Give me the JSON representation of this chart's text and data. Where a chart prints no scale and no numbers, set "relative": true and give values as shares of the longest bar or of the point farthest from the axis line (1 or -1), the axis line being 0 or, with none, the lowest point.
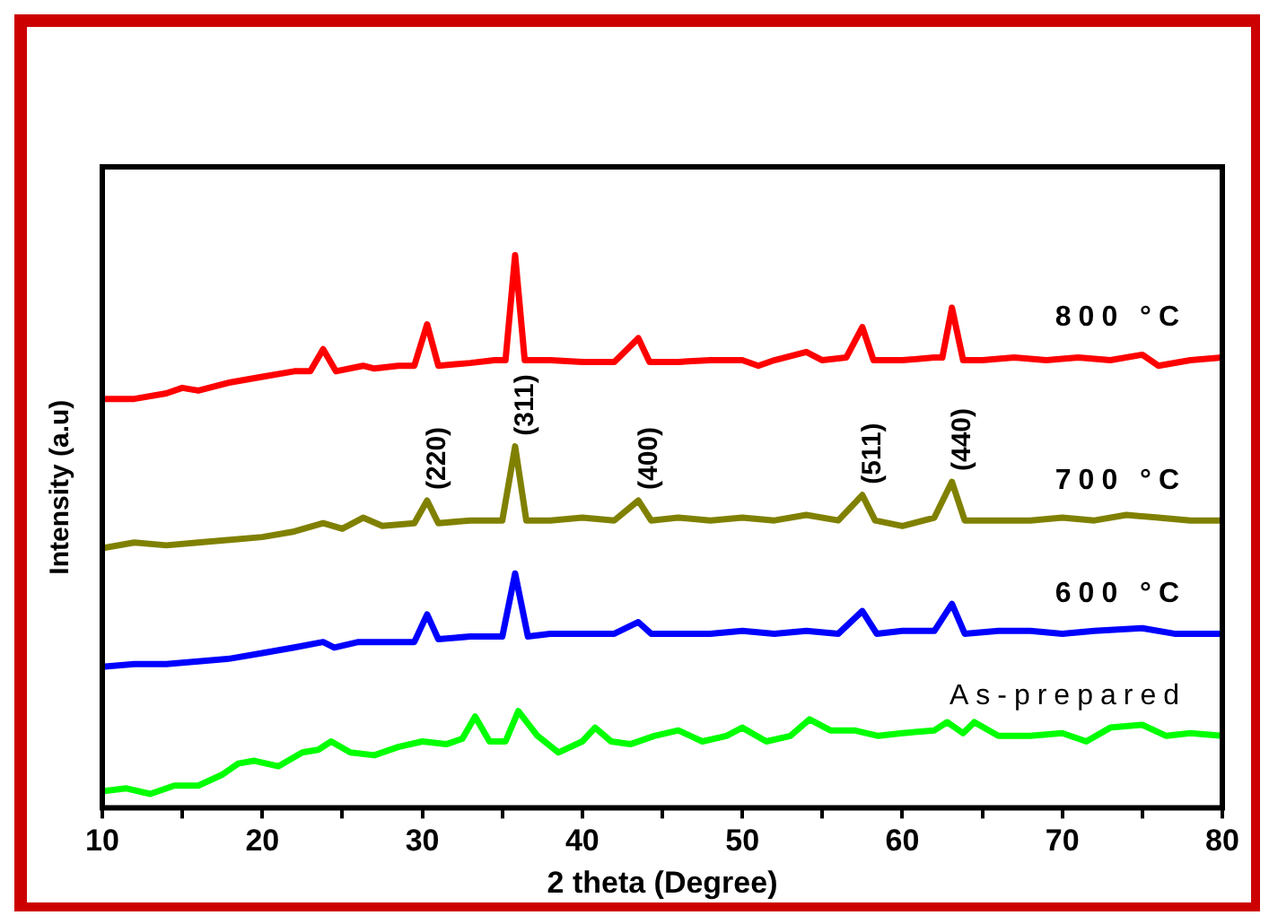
{
  "chart_data": {
    "type": "line",
    "relative": true,
    "xlabel": "2 theta (Degree)",
    "ylabel": "Intensity (a.u)",
    "xlim": [
      10,
      80
    ],
    "xticks": [
      10,
      {
        "value": 15,
        "label": null
      },
      20,
      {
        "value": 25,
        "label": null
      },
      30,
      {
        "value": 35,
        "label": null
      },
      40,
      {
        "value": 45,
        "label": null
      },
      50,
      {
        "value": 55,
        "label": null
      },
      60,
      {
        "value": 65,
        "label": null
      },
      70,
      {
        "value": 75,
        "label": null
      },
      80
    ],
    "legend": false,
    "grid": false,
    "marker": "none",
    "line_style": "solid",
    "series": [
      {
        "name": "800 °C",
        "color": "#ff0000",
        "x": [
          10,
          12,
          14,
          15,
          16,
          18,
          20,
          22,
          23,
          23.8,
          24.6,
          26.3,
          27,
          28.5,
          29.5,
          30.3,
          31,
          33,
          34.5,
          35.2,
          35.8,
          36.4,
          38,
          40,
          42,
          43.5,
          44.2,
          46,
          48,
          50,
          51,
          52,
          54,
          55,
          56.5,
          57.5,
          58.2,
          60,
          62,
          62.5,
          63.1,
          63.8,
          65,
          67,
          69,
          71,
          73,
          75,
          76,
          78,
          80
        ],
        "values": [
          0.74,
          0.74,
          0.75,
          0.76,
          0.755,
          0.77,
          0.78,
          0.79,
          0.79,
          0.83,
          0.79,
          0.8,
          0.795,
          0.8,
          0.8,
          0.875,
          0.8,
          0.805,
          0.81,
          0.81,
          1,
          0.81,
          0.81,
          0.807,
          0.807,
          0.85,
          0.807,
          0.807,
          0.81,
          0.81,
          0.8,
          0.81,
          0.825,
          0.81,
          0.815,
          0.87,
          0.81,
          0.81,
          0.815,
          0.815,
          0.905,
          0.81,
          0.81,
          0.815,
          0.81,
          0.815,
          0.81,
          0.82,
          0.8,
          0.81,
          0.815
        ]
      },
      {
        "name": "700 °C",
        "color": "#808000",
        "x": [
          10,
          12,
          14,
          16,
          18,
          20,
          22,
          23.8,
          25,
          26.3,
          27.5,
          29.5,
          30.3,
          31,
          33,
          35,
          35.8,
          36.5,
          38,
          40,
          42,
          43.5,
          44.3,
          46,
          48,
          50,
          52,
          54,
          56,
          57.5,
          58.3,
          60,
          62,
          63.1,
          63.9,
          66,
          68,
          70,
          72,
          74,
          76,
          78,
          80
        ],
        "values": [
          0.47,
          0.48,
          0.475,
          0.48,
          0.485,
          0.49,
          0.5,
          0.515,
          0.505,
          0.525,
          0.51,
          0.515,
          0.556,
          0.515,
          0.52,
          0.52,
          0.654,
          0.52,
          0.52,
          0.525,
          0.52,
          0.556,
          0.52,
          0.525,
          0.52,
          0.525,
          0.52,
          0.53,
          0.52,
          0.566,
          0.52,
          0.51,
          0.525,
          0.59,
          0.52,
          0.52,
          0.52,
          0.525,
          0.52,
          0.53,
          0.525,
          0.52,
          0.52
        ]
      },
      {
        "name": "600 °C",
        "color": "#0000ff",
        "x": [
          10,
          12,
          14,
          16,
          18,
          20,
          22,
          23.8,
          24.5,
          26,
          28,
          29.5,
          30.3,
          31,
          33,
          35,
          35.8,
          36.6,
          38,
          40,
          42,
          43.5,
          44.3,
          46,
          48,
          50,
          52,
          54,
          56,
          57.5,
          58.4,
          60,
          62,
          63.1,
          63.9,
          66,
          68,
          70,
          72,
          75,
          77,
          80
        ],
        "values": [
          0.255,
          0.26,
          0.26,
          0.265,
          0.27,
          0.28,
          0.29,
          0.3,
          0.29,
          0.3,
          0.3,
          0.3,
          0.35,
          0.305,
          0.31,
          0.31,
          0.424,
          0.31,
          0.315,
          0.315,
          0.315,
          0.336,
          0.315,
          0.315,
          0.315,
          0.32,
          0.315,
          0.32,
          0.315,
          0.356,
          0.315,
          0.32,
          0.32,
          0.369,
          0.315,
          0.32,
          0.32,
          0.315,
          0.32,
          0.325,
          0.315,
          0.315
        ]
      },
      {
        "name": "As-prepared",
        "color": "#00ff00",
        "x": [
          10,
          11.5,
          13,
          14.5,
          16,
          17.5,
          18.5,
          19.5,
          21,
          22.5,
          23.5,
          24.3,
          25.5,
          27,
          28.5,
          30,
          31.5,
          32.5,
          33.3,
          34.2,
          35.2,
          36,
          37.2,
          38.5,
          40,
          40.8,
          41.8,
          43,
          44.5,
          46,
          47.5,
          49,
          50,
          51.5,
          53,
          54.2,
          55.5,
          57,
          58.5,
          60,
          62,
          62.8,
          63.8,
          64.5,
          66,
          68,
          70,
          71.5,
          73,
          75,
          76.5,
          78,
          80
        ],
        "values": [
          0.03,
          0.035,
          0.025,
          0.04,
          0.04,
          0.06,
          0.08,
          0.085,
          0.075,
          0.1,
          0.105,
          0.12,
          0.1,
          0.095,
          0.11,
          0.12,
          0.115,
          0.125,
          0.165,
          0.12,
          0.12,
          0.175,
          0.13,
          0.1,
          0.12,
          0.145,
          0.12,
          0.115,
          0.13,
          0.14,
          0.12,
          0.13,
          0.145,
          0.12,
          0.13,
          0.16,
          0.14,
          0.14,
          0.13,
          0.135,
          0.14,
          0.155,
          0.135,
          0.155,
          0.13,
          0.13,
          0.135,
          0.12,
          0.145,
          0.15,
          0.13,
          0.135,
          0.13
        ]
      }
    ],
    "annotations": [
      {
        "text": "(220)",
        "x": 30.3,
        "y": 0.556
      },
      {
        "text": "(311)",
        "x": 35.8,
        "y": 0.654
      },
      {
        "text": "(400)",
        "x": 43.5,
        "y": 0.556
      },
      {
        "text": "(511)",
        "x": 57.5,
        "y": 0.566
      },
      {
        "text": "(440)",
        "x": 63.1,
        "y": 0.59
      }
    ]
  }
}
